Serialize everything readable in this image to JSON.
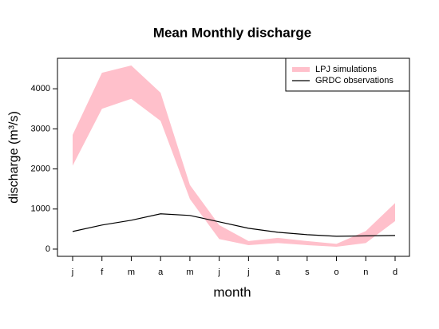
{
  "chart_data": {
    "type": "band-line",
    "title": "Mean Monthly discharge",
    "x_label": "month",
    "y_label": "discharge (m³/s)",
    "categories": [
      "j",
      "f",
      "m",
      "a",
      "m",
      "j",
      "j",
      "a",
      "s",
      "o",
      "n",
      "d"
    ],
    "series": [
      {
        "name": "LPJ simulations",
        "color": "#ffc0cb",
        "lower": [
          2080,
          3500,
          3750,
          3200,
          1250,
          250,
          100,
          150,
          100,
          60,
          150,
          700
        ],
        "upper": [
          2850,
          4400,
          4580,
          3900,
          1600,
          600,
          200,
          280,
          200,
          130,
          450,
          1150
        ]
      },
      {
        "name": "GRDC observations",
        "color": "#000000",
        "values": [
          440,
          600,
          720,
          880,
          840,
          680,
          520,
          420,
          360,
          320,
          330,
          340
        ]
      }
    ],
    "ylim": [
      -180,
      4760
    ],
    "yticks": [
      0,
      1000,
      2000,
      3000,
      4000
    ],
    "grid": false,
    "legend": "top-right"
  }
}
